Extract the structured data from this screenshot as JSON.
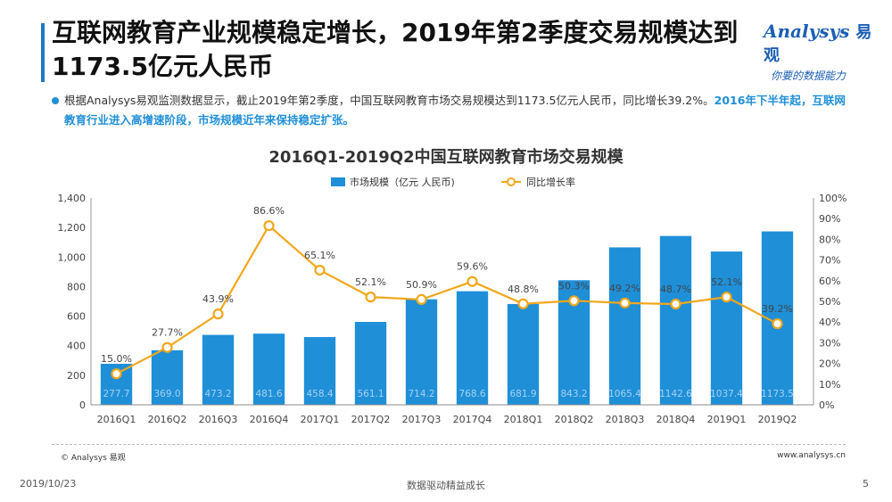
{
  "header": {
    "title": "互联网教育产业规模稳定增长，2019年第2季度交易规模达到1173.5亿元人民币"
  },
  "logo": {
    "brand": "Analysys",
    "brand_cn": "易观",
    "tagline": "你要的数据能力"
  },
  "summary": {
    "text_plain": "根据Analysys易观监测数据显示，截止2019年第2季度，中国互联网教育市场交易规模达到1173.5亿元人民币，同比增长39.2%。",
    "text_highlight": "2016年下半年起，互联网教育行业进入高增速阶段，市场规模近年来保持稳定扩张。"
  },
  "chart_data": {
    "type": "bar",
    "title": "2016Q1-2019Q2中国互联网教育市场交易规模",
    "categories": [
      "2016Q1",
      "2016Q2",
      "2016Q3",
      "2016Q4",
      "2017Q1",
      "2017Q2",
      "2017Q3",
      "2017Q4",
      "2018Q1",
      "2018Q2",
      "2018Q3",
      "2018Q4",
      "2019Q1",
      "2019Q2"
    ],
    "series": [
      {
        "name": "市场规模（亿元 人民币)",
        "type": "bar",
        "axis": "left",
        "color": "#1f8fd8",
        "values": [
          277.7,
          369.0,
          473.2,
          481.6,
          458.4,
          561.1,
          714.2,
          768.6,
          681.9,
          843.2,
          1065.4,
          1142.6,
          1037.4,
          1173.5
        ],
        "labels": [
          "277.7",
          "369.0",
          "473.2",
          "481.6",
          "458.4",
          "561.1",
          "714.2",
          "768.6",
          "681.9",
          "843.2",
          "1065.4",
          "1142.6",
          "1037.4",
          "1173.5"
        ]
      },
      {
        "name": "同比增长率",
        "type": "line",
        "axis": "right",
        "color": "#f2a71b",
        "values": [
          15.0,
          27.7,
          43.9,
          86.6,
          65.1,
          52.1,
          50.9,
          59.6,
          48.8,
          50.3,
          49.2,
          48.7,
          52.1,
          39.2
        ],
        "labels": [
          "15.0%",
          "27.7%",
          "43.9%",
          "86.6%",
          "65.1%",
          "52.1%",
          "50.9%",
          "59.6%",
          "48.8%",
          "50.3%",
          "49.2%",
          "48.7%",
          "52.1%",
          "39.2%"
        ]
      }
    ],
    "y_left": {
      "ylim": [
        0,
        1400
      ],
      "ticks": [
        "0",
        "200",
        "400",
        "600",
        "800",
        "1,000",
        "1,200",
        "1,400"
      ],
      "tick_values": [
        0,
        200,
        400,
        600,
        800,
        1000,
        1200,
        1400
      ]
    },
    "y_right": {
      "ylim": [
        0,
        100
      ],
      "ticks": [
        "0%",
        "10%",
        "20%",
        "30%",
        "40%",
        "50%",
        "60%",
        "70%",
        "80%",
        "90%",
        "100%"
      ],
      "tick_values": [
        0,
        10,
        20,
        30,
        40,
        50,
        60,
        70,
        80,
        90,
        100
      ]
    },
    "legend_position": "top-center",
    "grid": false
  },
  "footer": {
    "copyright": "© Analysys 易观",
    "website": "www.analysys.cn",
    "date": "2019/10/23",
    "slogan": "数据驱动精益成长",
    "page": "5"
  }
}
